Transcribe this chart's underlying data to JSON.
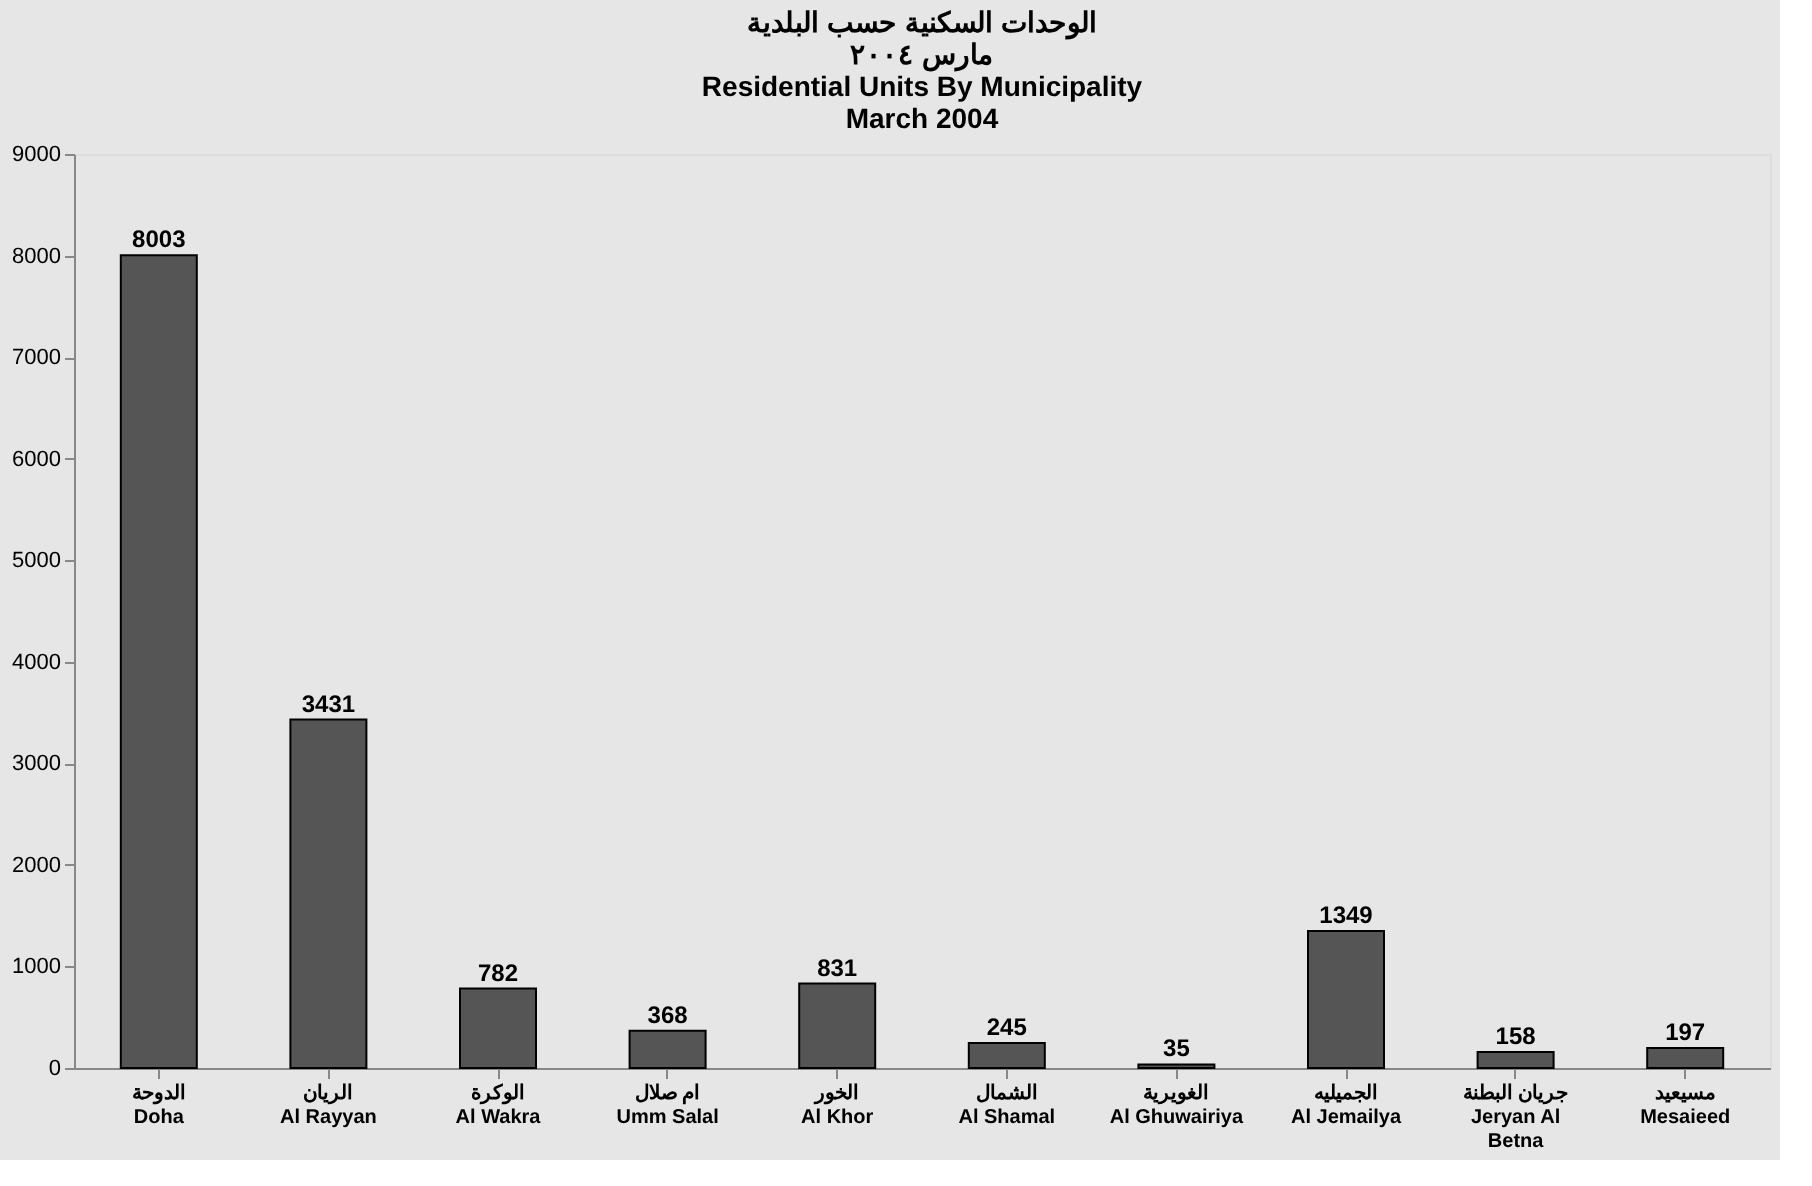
{
  "chart_data": {
    "type": "bar",
    "title": "الوحدات السكنية حسب البلدية\nمارس ٢٠٠٤\nResidential Units By Municipality\nMarch 2004",
    "categories": [
      "الدوحة\nDoha",
      "الريان\nAl Rayyan",
      "الوكرة\nAl Wakra",
      "ام صلال\nUmm Salal",
      "الخور\nAl Khor",
      "الشمال\nAl Shamal",
      "الغويرية\nAl Ghuwairiya",
      "الجميليه\nAl Jemailya",
      "جريان البطنة\nJeryan Al\nBetna",
      "مسيعيد\nMesaieed"
    ],
    "values": [
      8003,
      3431,
      782,
      368,
      831,
      245,
      35,
      1349,
      158,
      197
    ],
    "color": "#555555",
    "ylim": [
      0,
      9000
    ],
    "yticks": [
      0,
      1000,
      2000,
      3000,
      4000,
      5000,
      6000,
      7000,
      8000,
      9000
    ],
    "data_labels": true,
    "grid": false
  }
}
